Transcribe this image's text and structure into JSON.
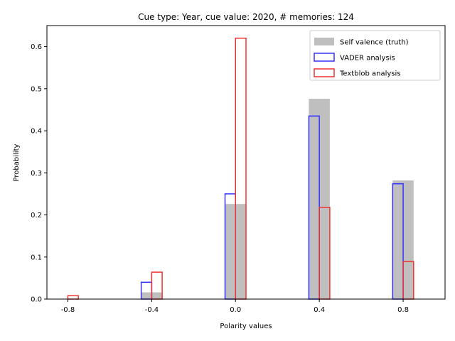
{
  "chart_data": {
    "type": "bar",
    "title": "Cue type: Year, cue value: 2020, # memories: 124",
    "xlabel": "Polarity values",
    "ylabel": "Probability",
    "categories": [
      "-0.8",
      "-0.4",
      "0.0",
      "0.4",
      "0.8"
    ],
    "x": [
      -0.8,
      -0.4,
      0.0,
      0.4,
      0.8
    ],
    "xlim": [
      -0.9,
      1.0
    ],
    "ylim": [
      0,
      0.65
    ],
    "yticks": [
      0.0,
      0.1,
      0.2,
      0.3,
      0.4,
      0.5,
      0.6
    ],
    "ytick_labels": [
      "0.0",
      "0.1",
      "0.2",
      "0.3",
      "0.4",
      "0.5",
      "0.6"
    ],
    "legend_position": "upper-right",
    "series": [
      {
        "name": "Self valence (truth)",
        "style": "filled",
        "color": "#bfbfbf",
        "values": [
          0.0,
          0.016,
          0.226,
          0.476,
          0.282
        ]
      },
      {
        "name": "VADER analysis",
        "style": "outline",
        "color": "#3333ff",
        "values": [
          0.0,
          0.04,
          0.25,
          0.435,
          0.274
        ]
      },
      {
        "name": "Textblob analysis",
        "style": "outline",
        "color": "#ee3333",
        "values": [
          0.008,
          0.064,
          0.62,
          0.218,
          0.089
        ]
      }
    ]
  }
}
